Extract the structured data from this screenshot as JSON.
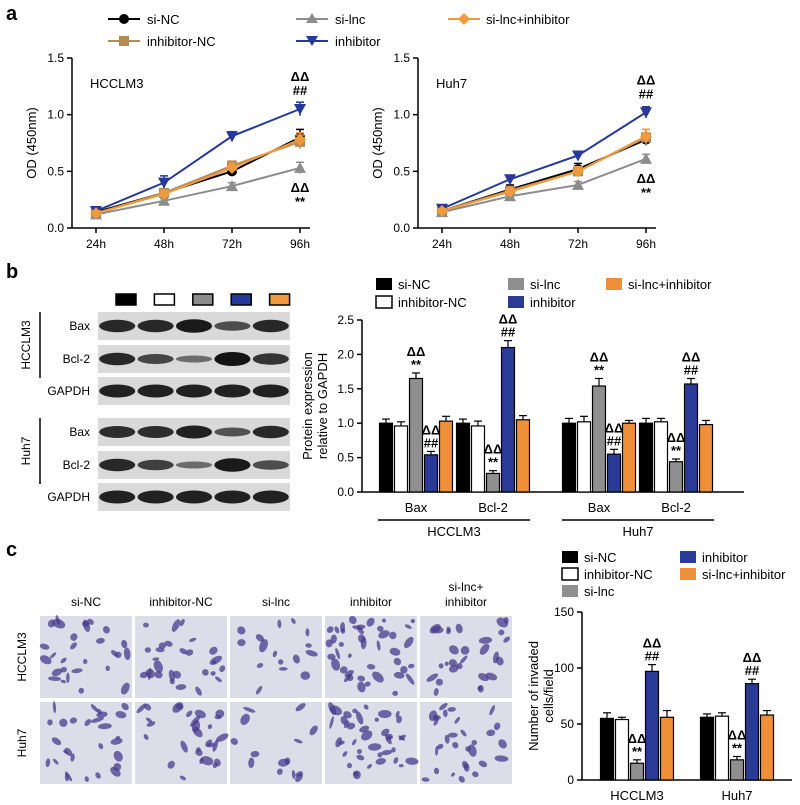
{
  "panels": [
    "a",
    "b",
    "c"
  ],
  "colors": {
    "si_nc": "#000000",
    "inhibitor_nc": "#b58a58",
    "si_lnc": "#8c8c8c",
    "inhibitor": "#26399a",
    "si_lnc_inhibitor": "#ef9a3c",
    "inhibitor_nc_bar": "#ffffff",
    "si_lnc_bar": "#8f8f8f",
    "inhibitor_bar": "#2a3b97",
    "si_lnc_inhibitor_bar": "#ef8f3a"
  },
  "legend_a": {
    "si_nc": "si-NC",
    "si_lnc": "si-lnc",
    "si_lnc_inhibitor": "si-lnc+inhibitor",
    "inhibitor_nc": "inhibitor-NC",
    "inhibitor": "inhibitor"
  },
  "legend_b": {
    "si_nc": "si-NC",
    "si_lnc": "si-lnc",
    "si_lnc_inhibitor": "si-lnc+inhibitor",
    "inhibitor_nc": "inhibitor-NC",
    "inhibitor": "inhibitor"
  },
  "legend_c": {
    "si_nc": "si-NC",
    "inhibitor": "inhibitor",
    "inhibitor_nc": "inhibitor-NC",
    "si_lnc_inhibitor": "si-lnc+inhibitor",
    "si_lnc": "si-lnc"
  },
  "blot": {
    "group_labels": [
      "HCCLM3",
      "Huh7"
    ],
    "row_labels": [
      "Bax",
      "Bcl-2",
      "GAPDH",
      "Bax",
      "Bcl-2",
      "GAPDH"
    ],
    "lane_swatch_colors": [
      "#000000",
      "#ffffff",
      "#8c8c8c",
      "#26399a",
      "#ef9a3c"
    ],
    "band_intensity": [
      [
        0.85,
        0.85,
        0.95,
        0.55,
        0.85
      ],
      [
        0.85,
        0.6,
        0.3,
        1.0,
        0.75
      ],
      [
        0.9,
        0.9,
        0.9,
        0.9,
        0.9
      ],
      [
        0.8,
        0.8,
        0.9,
        0.5,
        0.85
      ],
      [
        0.85,
        0.65,
        0.3,
        0.95,
        0.55
      ],
      [
        0.9,
        0.9,
        0.9,
        0.9,
        0.9
      ]
    ]
  },
  "micro": {
    "col_labels": [
      "si-NC",
      "inhibitor-NC",
      "si-lnc",
      "inhibitor",
      "si-lnc+\ninhibitor"
    ],
    "row_labels": [
      "HCCLM3",
      "Huh7"
    ],
    "cell_density": [
      [
        0.55,
        0.55,
        0.25,
        0.9,
        0.55
      ],
      [
        0.55,
        0.55,
        0.2,
        0.85,
        0.6
      ]
    ]
  },
  "chart_data": [
    {
      "type": "line",
      "panel": "a",
      "title": "HCCLM3",
      "ylabel": "OD (450nm)",
      "xlabel": "",
      "x": [
        "24h",
        "48h",
        "72h",
        "96h"
      ],
      "ylim": [
        0,
        1.5
      ],
      "yticks": [
        "0.0",
        "0.5",
        "1.0",
        "1.5"
      ],
      "series": [
        {
          "name": "si-NC",
          "key": "si_nc",
          "marker": "circle",
          "values": [
            0.14,
            0.31,
            0.5,
            0.8
          ],
          "err": [
            0.02,
            0.03,
            0.04,
            0.07
          ]
        },
        {
          "name": "inhibitor-NC",
          "key": "inhibitor_nc",
          "marker": "square",
          "values": [
            0.13,
            0.31,
            0.55,
            0.76
          ],
          "err": [
            0.02,
            0.03,
            0.04,
            0.06
          ]
        },
        {
          "name": "si-lnc",
          "key": "si_lnc",
          "marker": "triangle-up",
          "values": [
            0.12,
            0.24,
            0.37,
            0.53
          ],
          "err": [
            0.02,
            0.02,
            0.03,
            0.05
          ]
        },
        {
          "name": "inhibitor",
          "key": "inhibitor",
          "marker": "triangle-down",
          "values": [
            0.15,
            0.4,
            0.81,
            1.05
          ],
          "err": [
            0.02,
            0.06,
            0.04,
            0.06
          ]
        },
        {
          "name": "si-lnc+inhibitor",
          "key": "si_lnc_inhibitor",
          "marker": "diamond",
          "values": [
            0.13,
            0.3,
            0.53,
            0.78
          ],
          "err": [
            0.02,
            0.03,
            0.04,
            0.06
          ]
        }
      ],
      "annotations": [
        {
          "x": "96h",
          "y": 1.05,
          "text": "##",
          "top": "ΔΔ",
          "pos": "above"
        },
        {
          "x": "96h",
          "y": 0.53,
          "text": "**",
          "top": "ΔΔ",
          "pos": "below"
        }
      ]
    },
    {
      "type": "line",
      "panel": "a",
      "title": "Huh7",
      "ylabel": "OD (450nm)",
      "xlabel": "",
      "x": [
        "24h",
        "48h",
        "72h",
        "96h"
      ],
      "ylim": [
        0,
        1.5
      ],
      "yticks": [
        "0.0",
        "0.5",
        "1.0",
        "1.5"
      ],
      "series": [
        {
          "name": "si-NC",
          "key": "si_nc",
          "marker": "circle",
          "values": [
            0.15,
            0.34,
            0.52,
            0.78
          ],
          "err": [
            0.02,
            0.04,
            0.05,
            0.05
          ]
        },
        {
          "name": "inhibitor-NC",
          "key": "inhibitor_nc",
          "marker": "square",
          "values": [
            0.15,
            0.33,
            0.5,
            0.8
          ],
          "err": [
            0.02,
            0.03,
            0.04,
            0.07
          ]
        },
        {
          "name": "si-lnc",
          "key": "si_lnc",
          "marker": "triangle-up",
          "values": [
            0.14,
            0.28,
            0.38,
            0.61
          ],
          "err": [
            0.02,
            0.02,
            0.03,
            0.04
          ]
        },
        {
          "name": "inhibitor",
          "key": "inhibitor",
          "marker": "triangle-down",
          "values": [
            0.17,
            0.43,
            0.64,
            1.02
          ],
          "err": [
            0.02,
            0.03,
            0.03,
            0.05
          ]
        },
        {
          "name": "si-lnc+inhibitor",
          "key": "si_lnc_inhibitor",
          "marker": "diamond",
          "values": [
            0.15,
            0.32,
            0.5,
            0.81
          ],
          "err": [
            0.02,
            0.03,
            0.04,
            0.06
          ]
        }
      ],
      "annotations": [
        {
          "x": "96h",
          "y": 1.02,
          "text": "##",
          "top": "ΔΔ",
          "pos": "above"
        },
        {
          "x": "96h",
          "y": 0.61,
          "text": "**",
          "top": "ΔΔ",
          "pos": "below"
        }
      ]
    },
    {
      "type": "bar",
      "panel": "b",
      "ylabel": "Protein expression\nrelative to GAPDH",
      "ylim": [
        0,
        2.5
      ],
      "yticks": [
        "0.0",
        "0.5",
        "1.0",
        "1.5",
        "2.0",
        "2.5"
      ],
      "categories": [
        "Bax",
        "Bcl-2",
        "Bax",
        "Bcl-2"
      ],
      "groups": [
        "HCCLM3",
        "Huh7"
      ],
      "series": [
        {
          "name": "si-NC",
          "key": "si_nc",
          "values": [
            1.0,
            1.0,
            1.0,
            1.0
          ],
          "err": [
            0.06,
            0.06,
            0.07,
            0.07
          ]
        },
        {
          "name": "inhibitor-NC",
          "key": "inhibitor_nc",
          "values": [
            0.96,
            0.96,
            1.02,
            1.02
          ],
          "err": [
            0.06,
            0.07,
            0.08,
            0.05
          ]
        },
        {
          "name": "si-lnc",
          "key": "si_lnc",
          "values": [
            1.65,
            0.27,
            1.54,
            0.44
          ],
          "err": [
            0.08,
            0.04,
            0.11,
            0.04
          ]
        },
        {
          "name": "inhibitor",
          "key": "inhibitor",
          "values": [
            0.54,
            2.1,
            0.55,
            1.57
          ],
          "err": [
            0.05,
            0.1,
            0.07,
            0.08
          ]
        },
        {
          "name": "si-lnc+inhibitor",
          "key": "si_lnc_inhibitor",
          "values": [
            1.03,
            1.05,
            1.0,
            0.98
          ],
          "err": [
            0.07,
            0.06,
            0.04,
            0.06
          ]
        }
      ],
      "annotations": [
        {
          "cat": 0,
          "series": 2,
          "marks": [
            "ΔΔ",
            "**"
          ]
        },
        {
          "cat": 0,
          "series": 3,
          "marks": [
            "ΔΔ",
            "##"
          ]
        },
        {
          "cat": 1,
          "series": 2,
          "marks": [
            "ΔΔ",
            "**"
          ]
        },
        {
          "cat": 1,
          "series": 3,
          "marks": [
            "ΔΔ",
            "##"
          ]
        },
        {
          "cat": 2,
          "series": 2,
          "marks": [
            "ΔΔ",
            "**"
          ]
        },
        {
          "cat": 2,
          "series": 3,
          "marks": [
            "ΔΔ",
            "##"
          ]
        },
        {
          "cat": 3,
          "series": 2,
          "marks": [
            "ΔΔ",
            "**"
          ]
        },
        {
          "cat": 3,
          "series": 3,
          "marks": [
            "ΔΔ",
            "##"
          ]
        }
      ]
    },
    {
      "type": "bar",
      "panel": "c",
      "ylabel": "Number of invaded\ncells/field",
      "ylim": [
        0,
        150
      ],
      "yticks": [
        "0",
        "50",
        "100",
        "150"
      ],
      "categories": [
        "HCCLM3",
        "Huh7"
      ],
      "series": [
        {
          "name": "si-NC",
          "key": "si_nc",
          "values": [
            55,
            56
          ],
          "err": [
            5,
            3
          ]
        },
        {
          "name": "inhibitor-NC",
          "key": "inhibitor_nc",
          "values": [
            54,
            57
          ],
          "err": [
            2,
            3
          ]
        },
        {
          "name": "si-lnc",
          "key": "si_lnc",
          "values": [
            15,
            18
          ],
          "err": [
            3,
            3
          ]
        },
        {
          "name": "inhibitor",
          "key": "inhibitor",
          "values": [
            97,
            86
          ],
          "err": [
            6,
            4
          ]
        },
        {
          "name": "si-lnc+inhibitor",
          "key": "si_lnc_inhibitor",
          "values": [
            56,
            58
          ],
          "err": [
            6,
            4
          ]
        }
      ],
      "annotations": [
        {
          "cat": 0,
          "series": 2,
          "marks": [
            "ΔΔ",
            "**"
          ]
        },
        {
          "cat": 0,
          "series": 3,
          "marks": [
            "ΔΔ",
            "##"
          ]
        },
        {
          "cat": 1,
          "series": 2,
          "marks": [
            "ΔΔ",
            "**"
          ]
        },
        {
          "cat": 1,
          "series": 3,
          "marks": [
            "ΔΔ",
            "##"
          ]
        }
      ]
    }
  ]
}
